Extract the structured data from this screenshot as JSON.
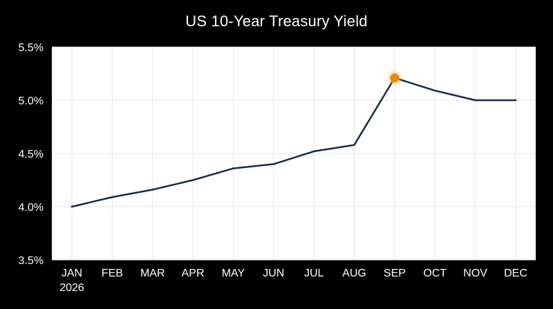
{
  "chart_data": {
    "type": "line",
    "title": "US 10-Year Treasury Yield",
    "xlabel": "",
    "ylabel": "",
    "categories": [
      "JAN",
      "FEB",
      "MAR",
      "APR",
      "MAY",
      "JUN",
      "JUL",
      "AUG",
      "SEP",
      "OCT",
      "NOV",
      "DEC"
    ],
    "x_sublabels": [
      "2026",
      "",
      "",
      "",
      "",
      "",
      "",
      "",
      "",
      "",
      "",
      ""
    ],
    "series": [
      {
        "values": [
          4.0,
          4.09,
          4.16,
          4.25,
          4.36,
          4.4,
          4.52,
          4.58,
          5.21,
          5.09,
          5.0,
          5.0
        ]
      }
    ],
    "highlight_index": 8,
    "ylim": [
      3.5,
      5.5
    ],
    "yticks": [
      3.5,
      4.0,
      4.5,
      5.0,
      5.5
    ],
    "ytick_labels": [
      "3.5%",
      "4.0%",
      "4.5%",
      "5.0%",
      "5.5%"
    ],
    "grid": true,
    "colors": {
      "background": "#000000",
      "plot_area": "#ffffff",
      "grid": "#e6e6e6",
      "line": "#17294a",
      "highlight": "#e88a0c",
      "text": "#ffffff"
    }
  }
}
